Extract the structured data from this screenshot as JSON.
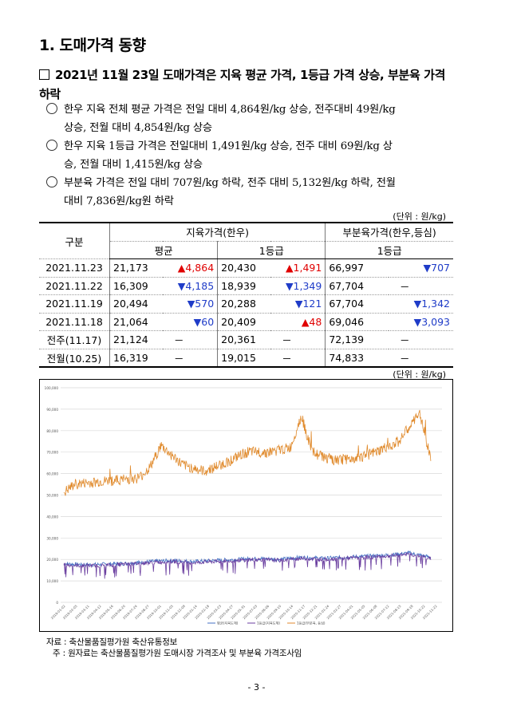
{
  "section_title": "1. 도매가격 동향",
  "headline": "2021년 11월 23일 도매가격은 지육 평균 가격, 1등급 가격 상승, 부분육 가격 하락",
  "bullets": [
    {
      "line1": "한우 지육 전체 평균 가격은 전일 대비 4,864원/kg 상승, 전주대비 49원/kg",
      "line2": "상승, 전월 대비 4,854원/kg 상승"
    },
    {
      "line1": "한우 지육 1등급 가격은 전일대비 1,491원/kg 상승, 전주 대비 69원/kg 상",
      "line2": "승, 전월 대비 1,415원/kg 상승"
    },
    {
      "line1": "부분육 가격은 전일 대비 707원/kg 하락, 전주 대비 5,132원/kg 하락, 전월",
      "line2": "대비 7,836원/kg원 하락"
    }
  ],
  "unit_label": "(단위 : 원/kg)",
  "table": {
    "col_category": "구분",
    "group1": "지육가격(한우)",
    "group2": "부분육가격(한우,등심)",
    "sub1": "평균",
    "sub2": "1등급",
    "sub3": "1등급",
    "rows": [
      {
        "date": "2021.11.23",
        "avg": "21,173",
        "avg_ch": "▲4,864",
        "avg_dir": "up",
        "g1": "20,430",
        "g1_ch": "▲1,491",
        "g1_dir": "up",
        "cut": "66,997",
        "cut_ch": "▼707",
        "cut_dir": "dn"
      },
      {
        "date": "2021.11.22",
        "avg": "16,309",
        "avg_ch": "▼4,185",
        "avg_dir": "dn",
        "g1": "18,939",
        "g1_ch": "▼1,349",
        "g1_dir": "dn",
        "cut": "67,704",
        "cut_ch": "－",
        "cut_dir": "dash"
      },
      {
        "date": "2021.11.19",
        "avg": "20,494",
        "avg_ch": "▼570",
        "avg_dir": "dn",
        "g1": "20,288",
        "g1_ch": "▼121",
        "g1_dir": "dn",
        "cut": "67,704",
        "cut_ch": "▼1,342",
        "cut_dir": "dn"
      },
      {
        "date": "2021.11.18",
        "avg": "21,064",
        "avg_ch": "▼60",
        "avg_dir": "dn",
        "g1": "20,409",
        "g1_ch": "▲48",
        "g1_dir": "up",
        "cut": "69,046",
        "cut_ch": "▼3,093",
        "cut_dir": "dn"
      },
      {
        "date": "전주(11.17)",
        "avg": "21,124",
        "avg_ch": "－",
        "avg_dir": "dash",
        "g1": "20,361",
        "g1_ch": "－",
        "g1_dir": "dash",
        "cut": "72,139",
        "cut_ch": "－",
        "cut_dir": "dash"
      },
      {
        "date": "전월(10.25)",
        "avg": "16,319",
        "avg_ch": "－",
        "avg_dir": "dash",
        "g1": "19,015",
        "g1_ch": "－",
        "g1_dir": "dash",
        "cut": "74,833",
        "cut_ch": "－",
        "cut_dir": "dash"
      }
    ]
  },
  "chart_unit_label": "(단위 : 원/kg)",
  "chart_data": {
    "type": "line",
    "ylim": [
      0,
      100000
    ],
    "y_ticks": [
      "0",
      "10,000",
      "20,000",
      "30,000",
      "40,000",
      "50,000",
      "60,000",
      "70,000",
      "80,000",
      "90,000",
      "100,000"
    ],
    "x_ticks": [
      "2019-01-02",
      "2019-02-05",
      "2019-03-11",
      "2019-04-12",
      "2019-05-16",
      "2019-06-20",
      "2019-07-24",
      "2019-08-27",
      "2019-10-01",
      "2019-11-05",
      "2019-12-09",
      "2020-01-14",
      "2020-02-18",
      "2020-03-23",
      "2020-04-27",
      "2020-05-31",
      "2020-07-03",
      "2020-08-06",
      "2020-09-10",
      "2020-10-14",
      "2020-11-17",
      "2020-12-21",
      "2021-01-24",
      "2021-02-27",
      "2021-04-01",
      "2021-05-05",
      "2021-06-08",
      "2021-07-12",
      "2021-08-15",
      "2021-09-18",
      "2021-10-22",
      "2021-11-22"
    ],
    "grid": true,
    "legend_placement": "bottom",
    "series": [
      {
        "name": "평균(지육도체)",
        "color": "#4472c4",
        "x": [
          "2019-01",
          "2019-03",
          "2019-05",
          "2019-07",
          "2019-09",
          "2019-11",
          "2020-01",
          "2020-03",
          "2020-05",
          "2020-07",
          "2020-09",
          "2020-11",
          "2021-01",
          "2021-03",
          "2021-05",
          "2021-07",
          "2021-09",
          "2021-11"
        ],
        "values": [
          18000,
          17500,
          17800,
          18200,
          19000,
          19500,
          19000,
          19500,
          20000,
          20500,
          20000,
          21000,
          20500,
          21000,
          21500,
          22000,
          23000,
          21000
        ]
      },
      {
        "name": "1등급(지육도체)",
        "color": "#6b3fa0",
        "x": [
          "2019-01",
          "2019-03",
          "2019-05",
          "2019-07",
          "2019-09",
          "2019-11",
          "2020-01",
          "2020-03",
          "2020-05",
          "2020-07",
          "2020-09",
          "2020-11",
          "2021-01",
          "2021-03",
          "2021-05",
          "2021-07",
          "2021-09",
          "2021-11"
        ],
        "values": [
          17500,
          17000,
          17300,
          17800,
          18500,
          19000,
          18500,
          19000,
          19500,
          20000,
          19500,
          20500,
          20000,
          20500,
          21000,
          21500,
          22500,
          20400
        ]
      },
      {
        "name": "1등급(부분육, 등심)",
        "color": "#e08a2c",
        "x": [
          "2019-01",
          "2019-02",
          "2019-04",
          "2019-06",
          "2019-08",
          "2019-09",
          "2019-10",
          "2019-12",
          "2020-02",
          "2020-04",
          "2020-06",
          "2020-08",
          "2020-10",
          "2020-11",
          "2020-12",
          "2021-02",
          "2021-04",
          "2021-06",
          "2021-08",
          "2021-10",
          "2021-11"
        ],
        "values": [
          51000,
          55000,
          56000,
          57000,
          58000,
          63000,
          73000,
          64000,
          61000,
          65000,
          70000,
          70000,
          72000,
          87000,
          70000,
          66000,
          67000,
          70000,
          75000,
          88000,
          67000
        ]
      }
    ]
  },
  "source_line": "자료 : 축산물품질평가원 축산유통정보",
  "note_line": "주 : 원자료는 축산물품질평가원 도매시장 가격조사 및 부분육 가격조사임",
  "page_number": "- 3 -"
}
